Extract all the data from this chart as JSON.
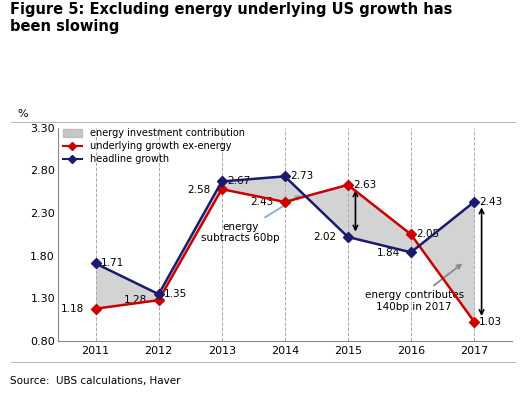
{
  "title": "Figure 5: Excluding energy underlying US growth has\nbeen slowing",
  "source": "Source:  UBS calculations, Haver",
  "ylabel": "%",
  "years": [
    2011,
    2012,
    2013,
    2014,
    2015,
    2016,
    2017
  ],
  "underlying_ex_energy": [
    1.18,
    1.28,
    2.58,
    2.43,
    2.63,
    2.05,
    1.03
  ],
  "headline_growth": [
    1.71,
    1.35,
    2.67,
    2.73,
    2.02,
    1.84,
    2.43
  ],
  "ylim": [
    0.8,
    3.3
  ],
  "yticks": [
    0.8,
    1.3,
    1.8,
    2.3,
    2.8,
    3.3
  ],
  "background_color": "#ffffff",
  "shading_color": "#b0b0b0",
  "line_red_color": "#cc0000",
  "line_navy_color": "#1a1a6e",
  "annotation1_text": "energy\nsubtracts 60bp",
  "annotation2_text": "energy contributes\n140bp in 2017",
  "gridline_color": "#aaaaaa",
  "arrow_color_blue": "#88aacc",
  "arrow_color_gray": "#888888"
}
